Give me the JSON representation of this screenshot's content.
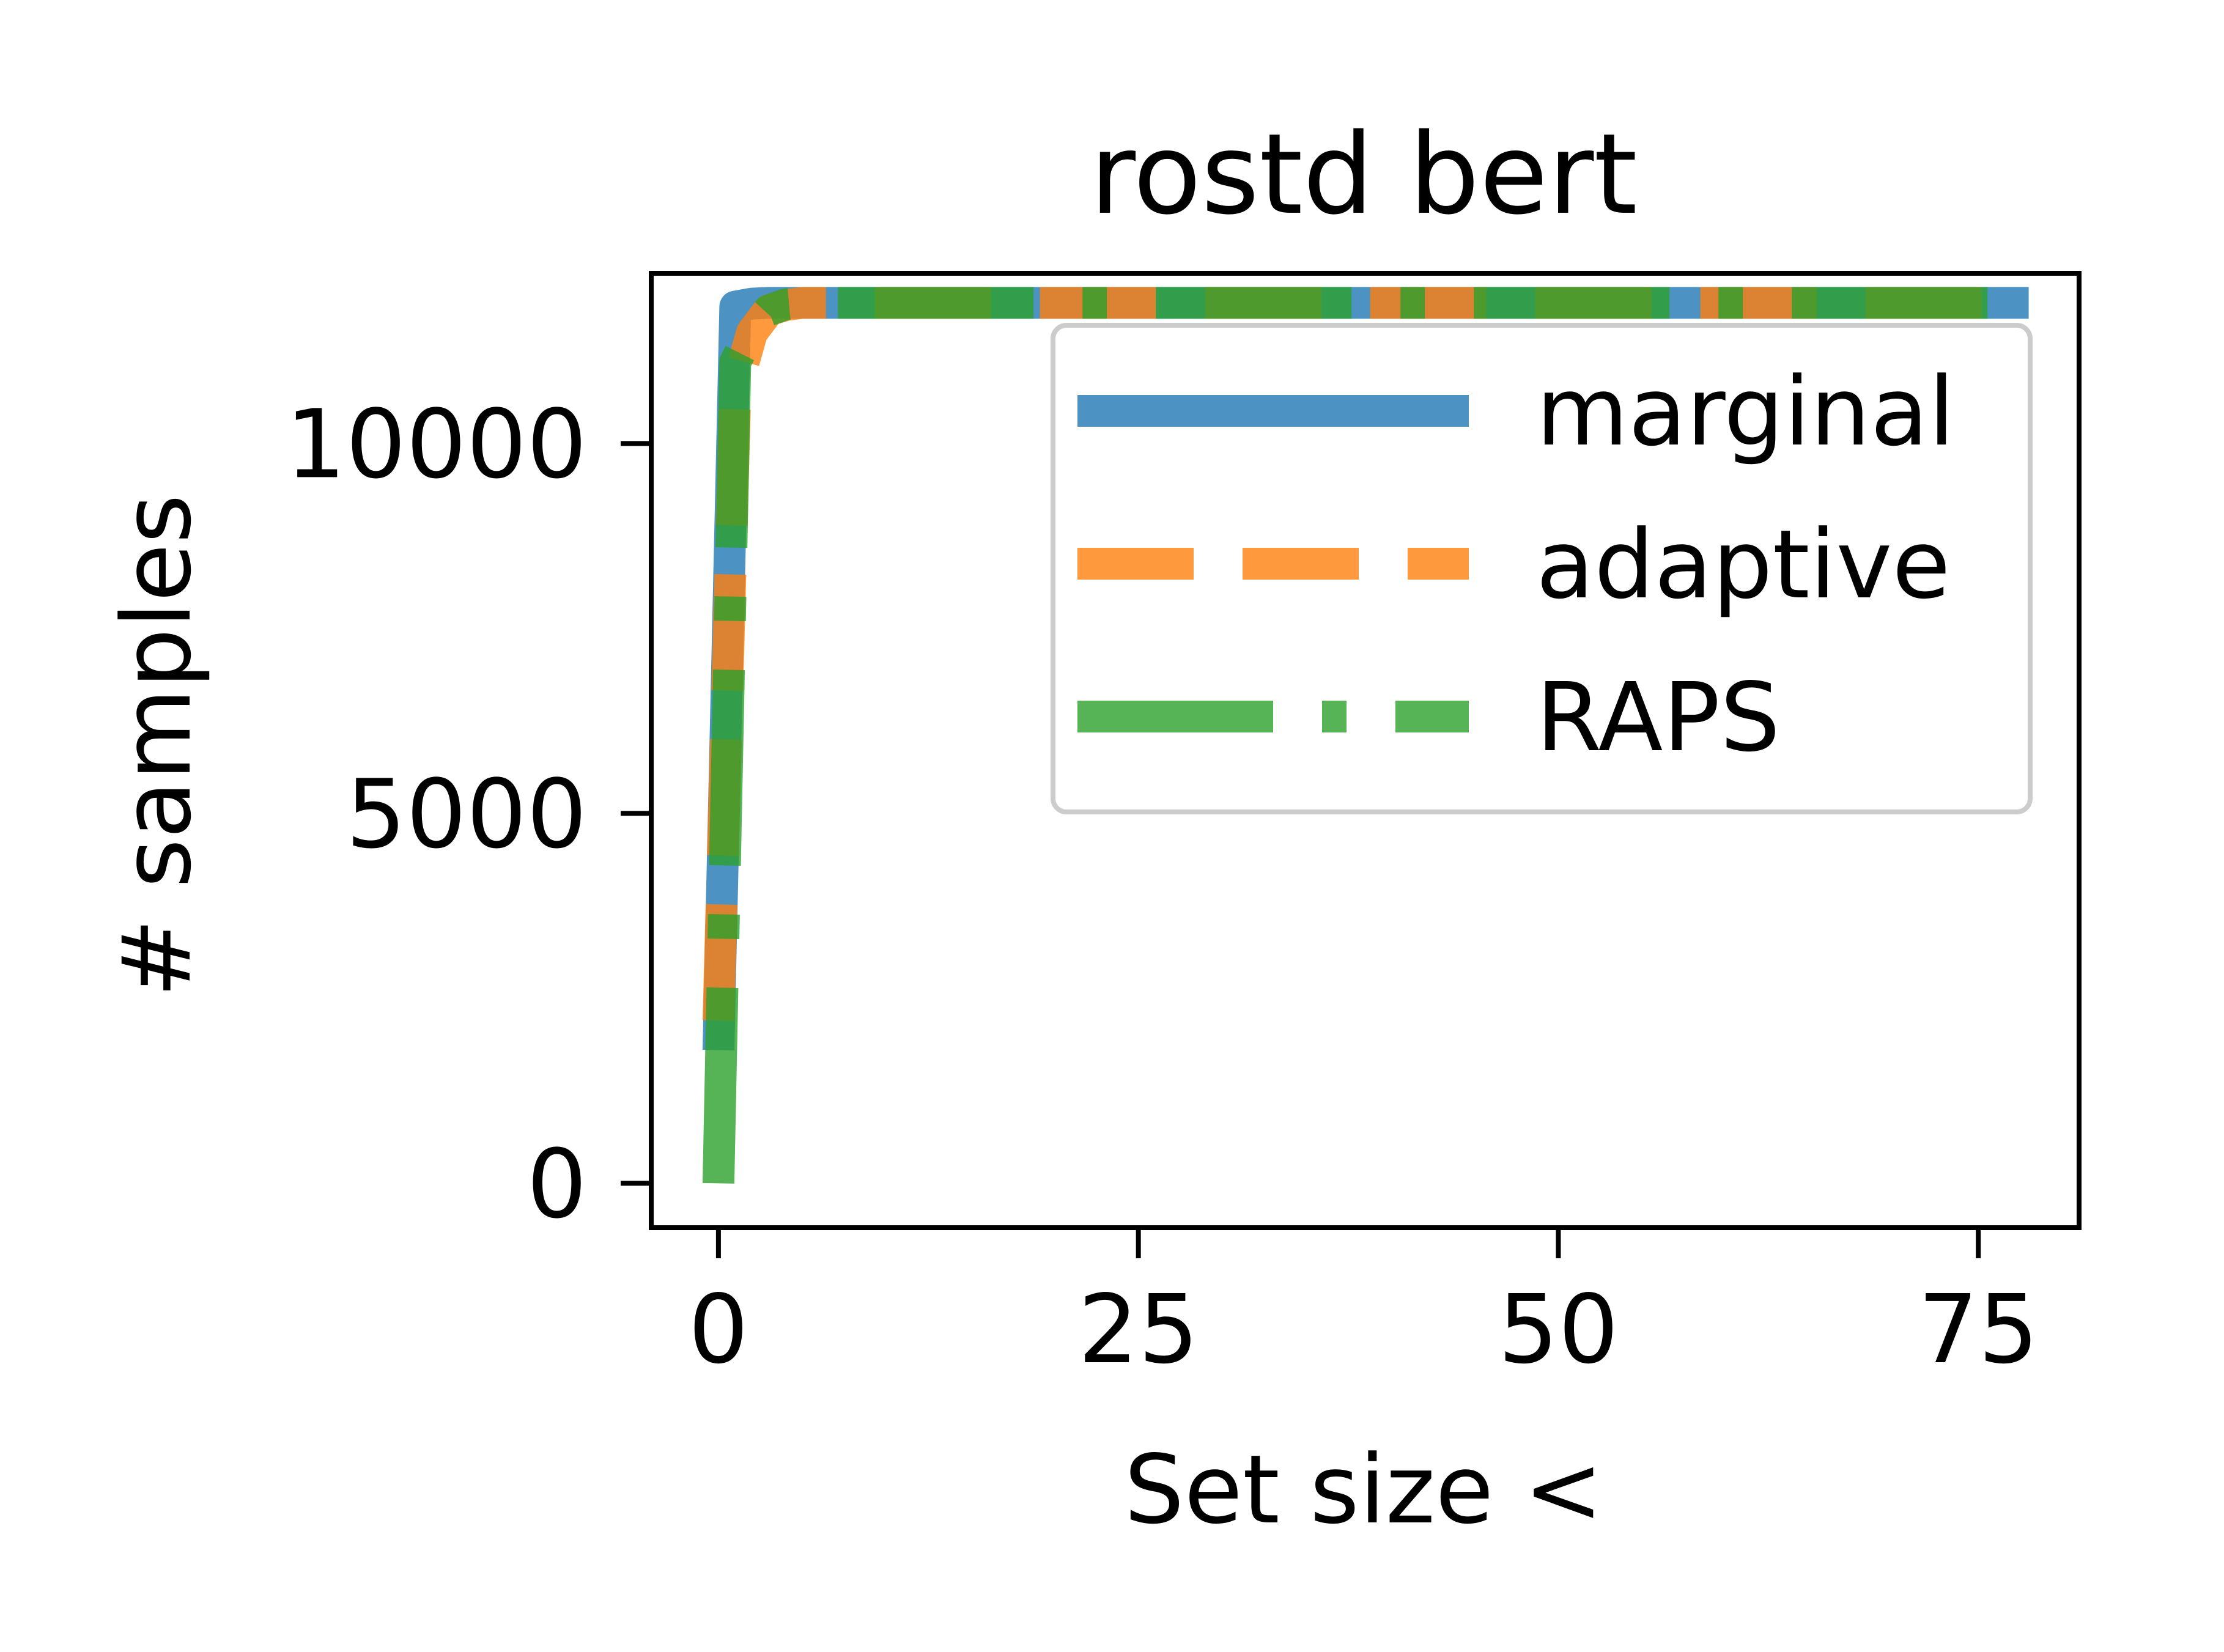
{
  "chart_data": {
    "type": "line",
    "title": "rostd bert",
    "xlabel": "Set size <",
    "ylabel": "# samples",
    "xlim": [
      -4,
      81
    ],
    "ylim": [
      -600,
      12300
    ],
    "xticks": [
      0,
      25,
      50,
      75
    ],
    "yticks": [
      0,
      5000,
      10000
    ],
    "xtick_labels": [
      "0",
      "25",
      "50",
      "75"
    ],
    "ytick_labels": [
      "0",
      "5000",
      "10000"
    ],
    "grid": false,
    "legend_position": "top-right",
    "series": [
      {
        "name": "marginal",
        "color": "#1f77b4",
        "style": "solid",
        "x": [
          0,
          1,
          2,
          3,
          4,
          5,
          10,
          20,
          40,
          60,
          78
        ],
        "y": [
          1800,
          11850,
          11890,
          11900,
          11900,
          11900,
          11900,
          11900,
          11900,
          11900,
          11900
        ]
      },
      {
        "name": "adaptive",
        "color": "#ff7f0e",
        "style": "dashed",
        "x": [
          0,
          1,
          2,
          3,
          4,
          5,
          10,
          20,
          40,
          60,
          78
        ],
        "y": [
          2200,
          10700,
          11500,
          11800,
          11870,
          11900,
          11900,
          11900,
          11900,
          11900,
          11900
        ]
      },
      {
        "name": "RAPS",
        "color": "#2ca02c",
        "style": "dashdot",
        "x": [
          0,
          1,
          2,
          3,
          4,
          5,
          10,
          20,
          40,
          60,
          78
        ],
        "y": [
          0,
          11100,
          11550,
          11800,
          11880,
          11900,
          11900,
          11900,
          11900,
          11900,
          11900
        ]
      }
    ]
  }
}
